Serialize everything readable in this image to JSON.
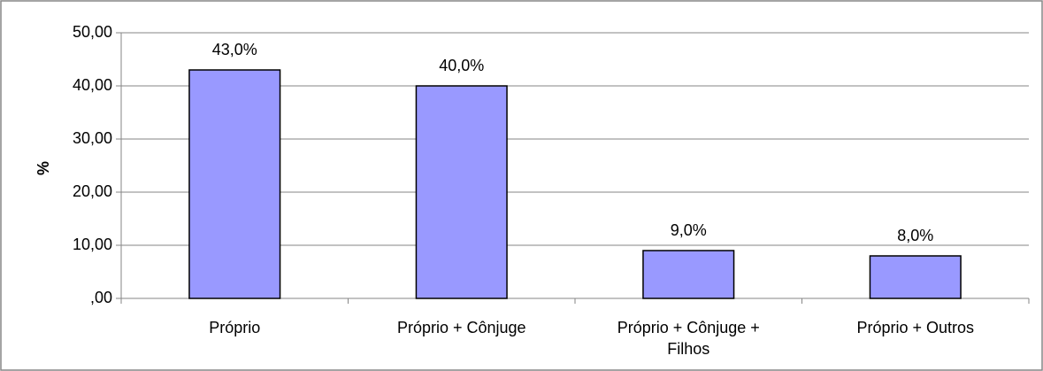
{
  "chart_data": {
    "type": "bar",
    "y_label": "%",
    "categories": [
      "Próprio",
      "Próprio + Cônjuge",
      "Próprio + Cônjuge + Filhos",
      "Próprio + Outros"
    ],
    "values": [
      43,
      40,
      9,
      8
    ],
    "value_labels": [
      "43,0%",
      "40,0%",
      "9,0%",
      "8,0%"
    ],
    "color": "#9999ff",
    "ylim": [
      0,
      50
    ],
    "yticks": [
      {
        "value": 0,
        "label": ",00"
      },
      {
        "value": 10,
        "label": "10,00"
      },
      {
        "value": 20,
        "label": "20,00"
      },
      {
        "value": 30,
        "label": "30,00"
      },
      {
        "value": 40,
        "label": "40,00"
      },
      {
        "value": 50,
        "label": "50,00"
      }
    ],
    "grid": true
  }
}
